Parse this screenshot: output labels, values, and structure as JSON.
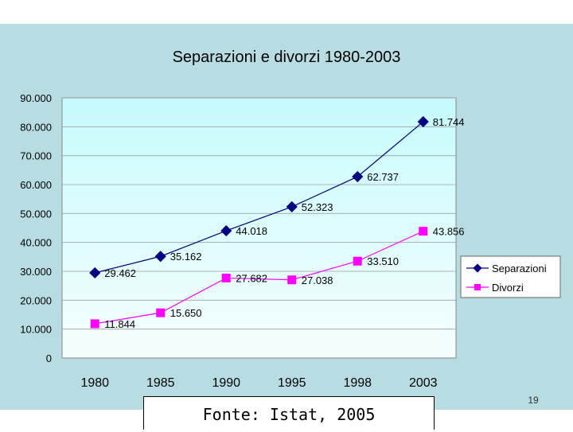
{
  "slide": {
    "page_number": "19",
    "source": "Fonte: Istat, 2005"
  },
  "chart_data": {
    "type": "line",
    "title": "Separazioni e divorzi 1980-2003",
    "categories": [
      "1980",
      "1985",
      "1990",
      "1995",
      "1998",
      "2003"
    ],
    "ylim": [
      0,
      90000
    ],
    "yticks": [
      0,
      10000,
      20000,
      30000,
      40000,
      50000,
      60000,
      70000,
      80000,
      90000
    ],
    "ytick_labels": [
      "0",
      "10.000",
      "20.000",
      "30.000",
      "40.000",
      "50.000",
      "60.000",
      "70.000",
      "80.000",
      "90.000"
    ],
    "grid": true,
    "legend_position": "right",
    "series": [
      {
        "name": "Separazioni",
        "color": "#000080",
        "marker": "diamond",
        "values": [
          29462,
          35162,
          44018,
          52323,
          62737,
          81744
        ],
        "labels": [
          "29.462",
          "35.162",
          "44.018",
          "52.323",
          "62.737",
          "81.744"
        ]
      },
      {
        "name": "Divorzi",
        "color": "#ff00ff",
        "marker": "square",
        "values": [
          11844,
          15650,
          27682,
          27038,
          33510,
          43856
        ],
        "labels": [
          "11.844",
          "15.650",
          "27.682",
          "27.038",
          "33.510",
          "43.856"
        ]
      }
    ]
  }
}
